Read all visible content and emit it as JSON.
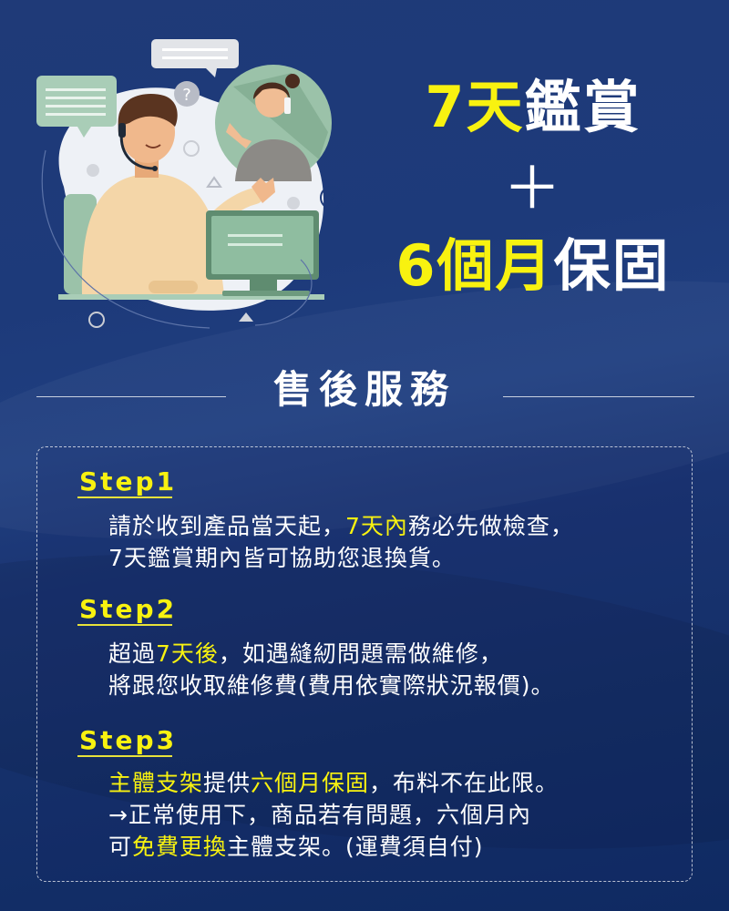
{
  "headline": {
    "line1_highlight": "7天",
    "line1_rest": "鑑賞",
    "plus": "＋",
    "line3_highlight": "6個月",
    "line3_rest": "保固"
  },
  "section_title": "售後服務",
  "steps": [
    {
      "label": "Step1",
      "lines": [
        [
          {
            "t": "請於收到產品當天起，"
          },
          {
            "t": "7天內",
            "hl": true
          },
          {
            "t": "務必先做檢查，"
          }
        ],
        [
          {
            "t": "7天鑑賞期內皆可協助您退換貨。"
          }
        ]
      ]
    },
    {
      "label": "Step2",
      "lines": [
        [
          {
            "t": "超過"
          },
          {
            "t": "7天後",
            "hl": true
          },
          {
            "t": "，如遇縫紉問題需做維修，"
          }
        ],
        [
          {
            "t": "將跟您收取維修費(費用依實際狀況報價)。"
          }
        ]
      ]
    },
    {
      "label": "Step3",
      "lines": [
        [
          {
            "t": "主體支架",
            "hl": true
          },
          {
            "t": "提供"
          },
          {
            "t": "六個月保固",
            "hl": true
          },
          {
            "t": "，布料不在此限。"
          }
        ],
        [
          {
            "t": "→正常使用下，商品若有問題，六個月內"
          }
        ],
        [
          {
            "t": "可"
          },
          {
            "t": "免費更換",
            "hl": true
          },
          {
            "t": "主體支架。(運費須自付)"
          }
        ]
      ]
    }
  ],
  "colors": {
    "background": "#1d3a7a",
    "highlight": "#f8f210",
    "text": "#ffffff"
  },
  "illustration": "customer-service-agent-with-headset-talking-to-woman-on-phone"
}
